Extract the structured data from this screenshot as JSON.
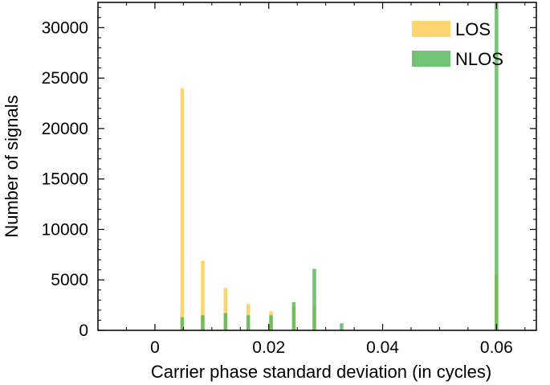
{
  "chart_data": {
    "type": "bar",
    "title": "",
    "xlabel": "Carrier phase standard deviation (in cycles)",
    "ylabel": "Number of signals",
    "xlim": [
      -0.01,
      0.067
    ],
    "ylim": [
      0,
      32500
    ],
    "xticks": [
      0,
      0.02,
      0.04,
      0.06
    ],
    "xtick_labels": [
      "0",
      "0.02",
      "0.04",
      "0.06"
    ],
    "yticks": [
      0,
      5000,
      10000,
      15000,
      20000,
      25000,
      30000
    ],
    "ytick_labels": [
      "0",
      "5000",
      "10000",
      "15000",
      "20000",
      "25000",
      "30000"
    ],
    "grid": false,
    "legend_position": "top-right",
    "series": [
      {
        "name": "LOS",
        "color": "#ffd166",
        "x": [
          0.0048,
          0.0084,
          0.0124,
          0.0164,
          0.0204,
          0.0244,
          0.028,
          0.06
        ],
        "values": [
          24000,
          6900,
          4200,
          2600,
          1900,
          2300,
          2400,
          5500
        ]
      },
      {
        "name": "NLOS",
        "color": "#5cb85c",
        "x": [
          0.0048,
          0.0084,
          0.0124,
          0.0164,
          0.0204,
          0.0244,
          0.028,
          0.0328,
          0.06
        ],
        "values": [
          1300,
          1500,
          1700,
          1500,
          1500,
          2800,
          6100,
          700,
          32500
        ]
      }
    ]
  }
}
